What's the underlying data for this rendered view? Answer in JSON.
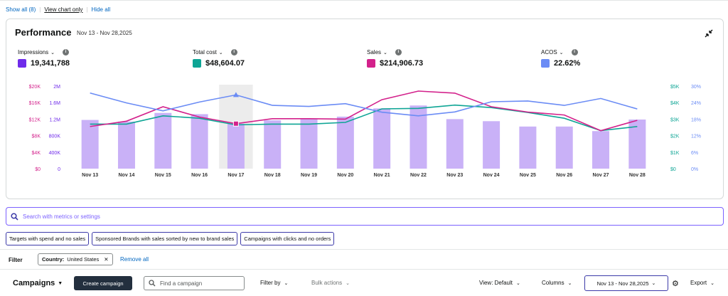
{
  "toplinks": {
    "show_all": "Show all (8)",
    "view_chart_only": "View chart only",
    "hide_all": "Hide all"
  },
  "performance": {
    "title": "Performance",
    "date_range": "Nov 13 - Nov 28,2025",
    "metrics": [
      {
        "label": "Impressions",
        "value": "19,341,788",
        "color": "#6f2bea"
      },
      {
        "label": "Total cost",
        "value": "$48,604.07",
        "color": "#0ea595"
      },
      {
        "label": "Sales",
        "value": "$214,906.73",
        "color": "#d3218b"
      },
      {
        "label": "ACOS",
        "value": "22.62%",
        "color": "#6b8cf5"
      }
    ]
  },
  "chart_data": {
    "type": "bar",
    "categories": [
      "Nov 13",
      "Nov 14",
      "Nov 15",
      "Nov 16",
      "Nov 17",
      "Nov 18",
      "Nov 19",
      "Nov 20",
      "Nov 21",
      "Nov 22",
      "Nov 23",
      "Nov 24",
      "Nov 25",
      "Nov 26",
      "Nov 27",
      "Nov 28"
    ],
    "axes": {
      "sales_ticks": [
        "$0",
        "$4K",
        "$8K",
        "$12K",
        "$16K",
        "$20K"
      ],
      "impr_ticks": [
        "0",
        "400K",
        "800K",
        "1.2M",
        "1.6M",
        "2M"
      ],
      "cost_ticks": [
        "$0",
        "$1K",
        "$2K",
        "$3K",
        "$4K",
        "$5K"
      ],
      "acos_ticks": [
        "0%",
        "6%",
        "12%",
        "18%",
        "24%",
        "30%"
      ]
    },
    "series": [
      {
        "name": "Impressions",
        "type": "bar",
        "color": "#c9b1f7",
        "values": [
          1180000,
          1140000,
          1350000,
          1320000,
          1090000,
          1170000,
          1200000,
          1260000,
          1460000,
          1530000,
          1200000,
          1150000,
          1020000,
          1020000,
          910000,
          1190000
        ]
      },
      {
        "name": "Total cost",
        "type": "line",
        "color": "#0ea595",
        "values": [
          2700,
          2700,
          3200,
          3050,
          2650,
          2700,
          2700,
          2800,
          3620,
          3650,
          3850,
          3700,
          3400,
          3050,
          2300,
          2550
        ]
      },
      {
        "name": "Sales",
        "type": "line",
        "color": "#d3218b",
        "values": [
          10200,
          11500,
          15000,
          12500,
          10900,
          12100,
          12100,
          12000,
          16700,
          18800,
          18300,
          15000,
          13700,
          13000,
          9200,
          11700
        ]
      },
      {
        "name": "ACOS",
        "type": "line",
        "color": "#6b8cf5",
        "values": [
          27.5,
          23.9,
          21.0,
          24.2,
          26.8,
          23.0,
          22.6,
          23.6,
          20.5,
          19.2,
          20.6,
          24.3,
          24.6,
          23.0,
          25.5,
          21.7
        ]
      }
    ],
    "highlight_index": 4
  },
  "search": {
    "placeholder": "Search with metrics or settings"
  },
  "chips": [
    "Targets with spend and no sales",
    "Sponsored Brands with sales sorted by new to brand sales",
    "Campaigns with clicks and no orders"
  ],
  "filter": {
    "label": "Filter",
    "chip_key": "Country:",
    "chip_value": "United States",
    "remove_all": "Remove all"
  },
  "toolbar": {
    "campaigns": "Campaigns",
    "create": "Create campaign",
    "find_placeholder": "Find a campaign",
    "filter_by": "Filter by",
    "bulk_actions": "Bulk actions",
    "view": "View: Default",
    "columns": "Columns",
    "date": "Nov 13 - Nov 28,2025",
    "export": "Export"
  }
}
